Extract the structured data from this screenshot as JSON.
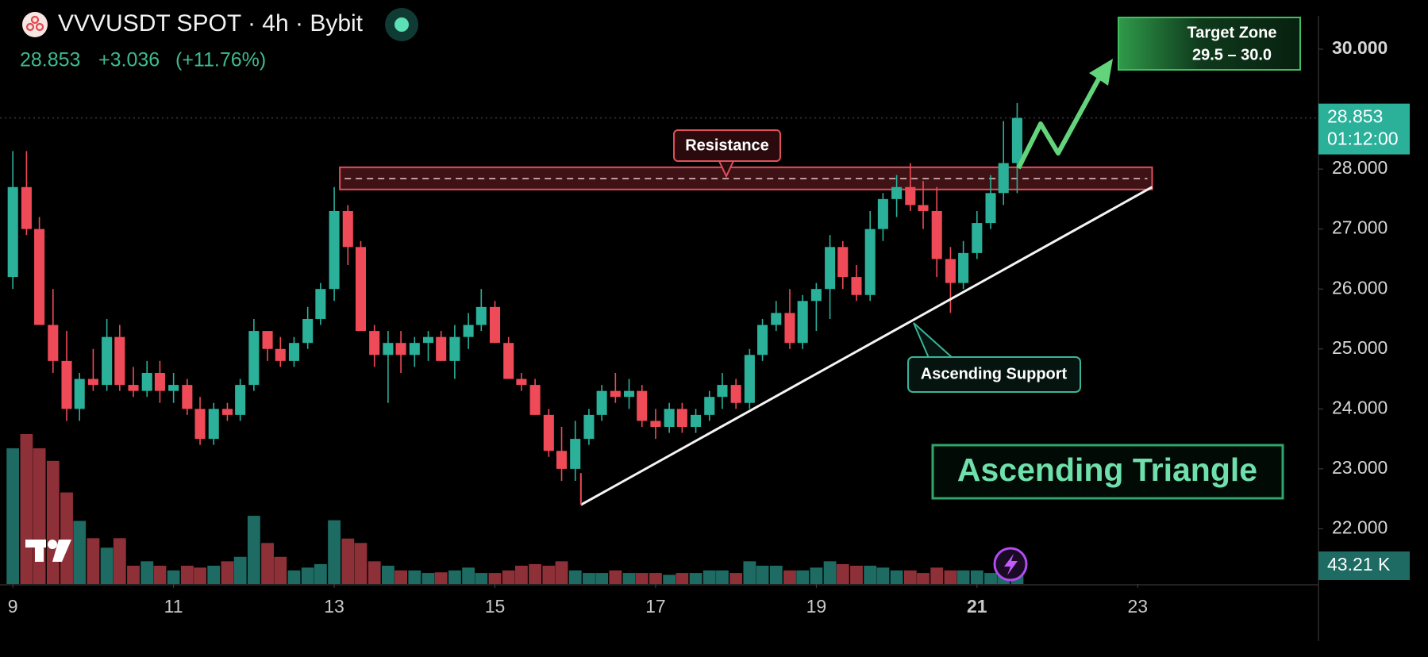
{
  "header": {
    "symbol": "VVVUSDT SPOT · 4h · Bybit",
    "price": "28.853",
    "change": "+3.036",
    "change_pct": "(+11.76%)"
  },
  "chart_data": {
    "type": "candlestick",
    "x": [
      9,
      9.17,
      9.33,
      9.5,
      9.67,
      9.83,
      10,
      10.17,
      10.33,
      10.5,
      10.67,
      10.83,
      11,
      11.17,
      11.33,
      11.5,
      11.67,
      11.83,
      12,
      12.17,
      12.33,
      12.5,
      12.67,
      12.83,
      13,
      13.17,
      13.33,
      13.5,
      13.67,
      13.83,
      14,
      14.17,
      14.33,
      14.5,
      14.67,
      14.83,
      15,
      15.17,
      15.33,
      15.5,
      15.67,
      15.83,
      16,
      16.17,
      16.33,
      16.5,
      16.67,
      16.83,
      17,
      17.17,
      17.33,
      17.5,
      17.67,
      17.83,
      18,
      18.17,
      18.33,
      18.5,
      18.67,
      18.83,
      19,
      19.17,
      19.33,
      19.5,
      19.67,
      19.83,
      20,
      20.17,
      20.33,
      20.5,
      20.67,
      20.83,
      21,
      21.17,
      21.33,
      21.5
    ],
    "open": [
      26.2,
      27.7,
      27.0,
      25.4,
      24.8,
      24.0,
      24.5,
      24.4,
      25.2,
      24.4,
      24.3,
      24.6,
      24.3,
      24.4,
      24.0,
      23.5,
      24.0,
      23.9,
      24.4,
      25.3,
      25.0,
      24.8,
      25.1,
      25.5,
      26.0,
      27.3,
      26.7,
      25.3,
      24.9,
      25.1,
      24.9,
      25.1,
      25.2,
      24.8,
      25.2,
      25.4,
      25.7,
      25.1,
      24.5,
      24.4,
      23.9,
      23.3,
      23.0,
      23.5,
      23.9,
      24.3,
      24.2,
      24.3,
      23.8,
      23.7,
      24.0,
      23.7,
      23.9,
      24.2,
      24.4,
      24.1,
      24.9,
      25.4,
      25.6,
      25.1,
      25.8,
      26.0,
      26.7,
      26.2,
      25.9,
      27.0,
      27.5,
      27.7,
      27.4,
      27.3,
      26.5,
      26.1,
      26.6,
      27.1,
      27.6,
      28.1
    ],
    "high": [
      28.3,
      28.3,
      27.2,
      26.0,
      25.3,
      24.6,
      25.0,
      25.5,
      25.4,
      24.7,
      24.8,
      24.8,
      24.6,
      24.5,
      24.2,
      24.1,
      24.1,
      24.5,
      25.5,
      25.3,
      25.2,
      25.2,
      25.7,
      26.1,
      27.7,
      27.4,
      26.8,
      25.4,
      25.3,
      25.3,
      25.2,
      25.3,
      25.3,
      25.4,
      25.6,
      26.0,
      25.8,
      25.2,
      24.6,
      24.5,
      24.0,
      23.7,
      23.8,
      24.0,
      24.4,
      24.6,
      24.5,
      24.4,
      24.0,
      24.1,
      24.1,
      24.0,
      24.3,
      24.6,
      24.5,
      25.0,
      25.5,
      25.8,
      26.0,
      25.9,
      26.1,
      26.9,
      26.8,
      26.4,
      27.3,
      27.6,
      27.9,
      28.1,
      27.8,
      27.7,
      26.7,
      26.8,
      27.3,
      27.9,
      28.8,
      29.1
    ],
    "low": [
      26.0,
      26.9,
      25.4,
      24.6,
      23.8,
      23.8,
      24.3,
      24.3,
      24.3,
      24.2,
      24.2,
      24.1,
      24.1,
      23.9,
      23.4,
      23.4,
      23.8,
      23.8,
      24.3,
      24.8,
      24.7,
      24.7,
      25.0,
      25.4,
      25.8,
      26.4,
      25.3,
      24.7,
      24.1,
      24.6,
      24.7,
      24.8,
      24.8,
      24.5,
      25.0,
      25.3,
      25.1,
      24.5,
      24.3,
      23.9,
      23.2,
      22.8,
      22.8,
      23.4,
      23.8,
      24.1,
      24.0,
      23.7,
      23.5,
      23.6,
      23.6,
      23.6,
      23.8,
      24.0,
      24.0,
      24.0,
      24.8,
      25.3,
      25.0,
      25.0,
      25.3,
      25.5,
      26.0,
      25.8,
      25.8,
      26.8,
      27.2,
      27.3,
      27.0,
      26.2,
      25.6,
      26.0,
      26.5,
      27.0,
      27.4,
      27.6
    ],
    "close": [
      27.7,
      27.0,
      25.4,
      24.8,
      24.0,
      24.5,
      24.4,
      25.2,
      24.4,
      24.3,
      24.6,
      24.3,
      24.4,
      24.0,
      23.5,
      24.0,
      23.9,
      24.4,
      25.3,
      25.0,
      24.8,
      25.1,
      25.5,
      26.0,
      27.3,
      26.7,
      25.3,
      24.9,
      25.1,
      24.9,
      25.1,
      25.2,
      24.8,
      25.2,
      25.4,
      25.7,
      25.1,
      24.5,
      24.4,
      23.9,
      23.3,
      23.0,
      23.5,
      23.9,
      24.3,
      24.2,
      24.3,
      23.8,
      23.7,
      24.0,
      23.7,
      23.9,
      24.2,
      24.4,
      24.1,
      24.9,
      25.4,
      25.6,
      25.1,
      25.8,
      26.0,
      26.7,
      26.2,
      25.9,
      27.0,
      27.5,
      27.7,
      27.4,
      27.3,
      26.5,
      26.1,
      26.6,
      27.1,
      27.6,
      28.1,
      28.853
    ],
    "up_color": "#2bb09a",
    "down_color": "#ee4a57",
    "volume": {
      "values": [
        430,
        475,
        430,
        390,
        290,
        200,
        145,
        115,
        145,
        58,
        72,
        58,
        43,
        58,
        52,
        58,
        72,
        86,
        216,
        130,
        86,
        43,
        52,
        63,
        202,
        144,
        130,
        72,
        58,
        43,
        43,
        35,
        37,
        43,
        52,
        35,
        35,
        43,
        58,
        63,
        58,
        72,
        43,
        35,
        35,
        43,
        35,
        35,
        35,
        29,
        35,
        35,
        43,
        43,
        35,
        72,
        58,
        58,
        43,
        43,
        52,
        72,
        63,
        58,
        58,
        52,
        43,
        43,
        35,
        52,
        43,
        43,
        43,
        35,
        35,
        43.21
      ],
      "value_labels_last": "43.21 K",
      "up_color": "#1d6b62",
      "down_color": "#8e3038"
    },
    "countdown": "01:12:00",
    "xlim": [
      8.84,
      25.25
    ],
    "xticks": [
      9,
      11,
      13,
      15,
      17,
      19,
      21,
      23
    ],
    "ylim": [
      21,
      30.82
    ],
    "yticks": [
      {
        "value": 22,
        "label": "22.000"
      },
      {
        "value": 23,
        "label": "23.000"
      },
      {
        "value": 24,
        "label": "24.000"
      },
      {
        "value": 25,
        "label": "25.000"
      },
      {
        "value": 26,
        "label": "26.000"
      },
      {
        "value": 27,
        "label": "27.000"
      },
      {
        "value": 28,
        "label": "28.000"
      },
      {
        "value": 30,
        "label": "30.000"
      }
    ],
    "annotations": {
      "resistance": {
        "label": "Resistance",
        "from": 13.07,
        "to": 23.18,
        "low": 27.66,
        "high": 28.03,
        "level": 27.84
      },
      "support": {
        "label": "Ascending Support",
        "x": [
          16.07,
          23.18
        ],
        "y": [
          22.4,
          27.7
        ]
      },
      "pattern": "Ascending Triangle",
      "target": {
        "title": "Target Zone",
        "range": "29.5 – 30.0"
      }
    }
  }
}
